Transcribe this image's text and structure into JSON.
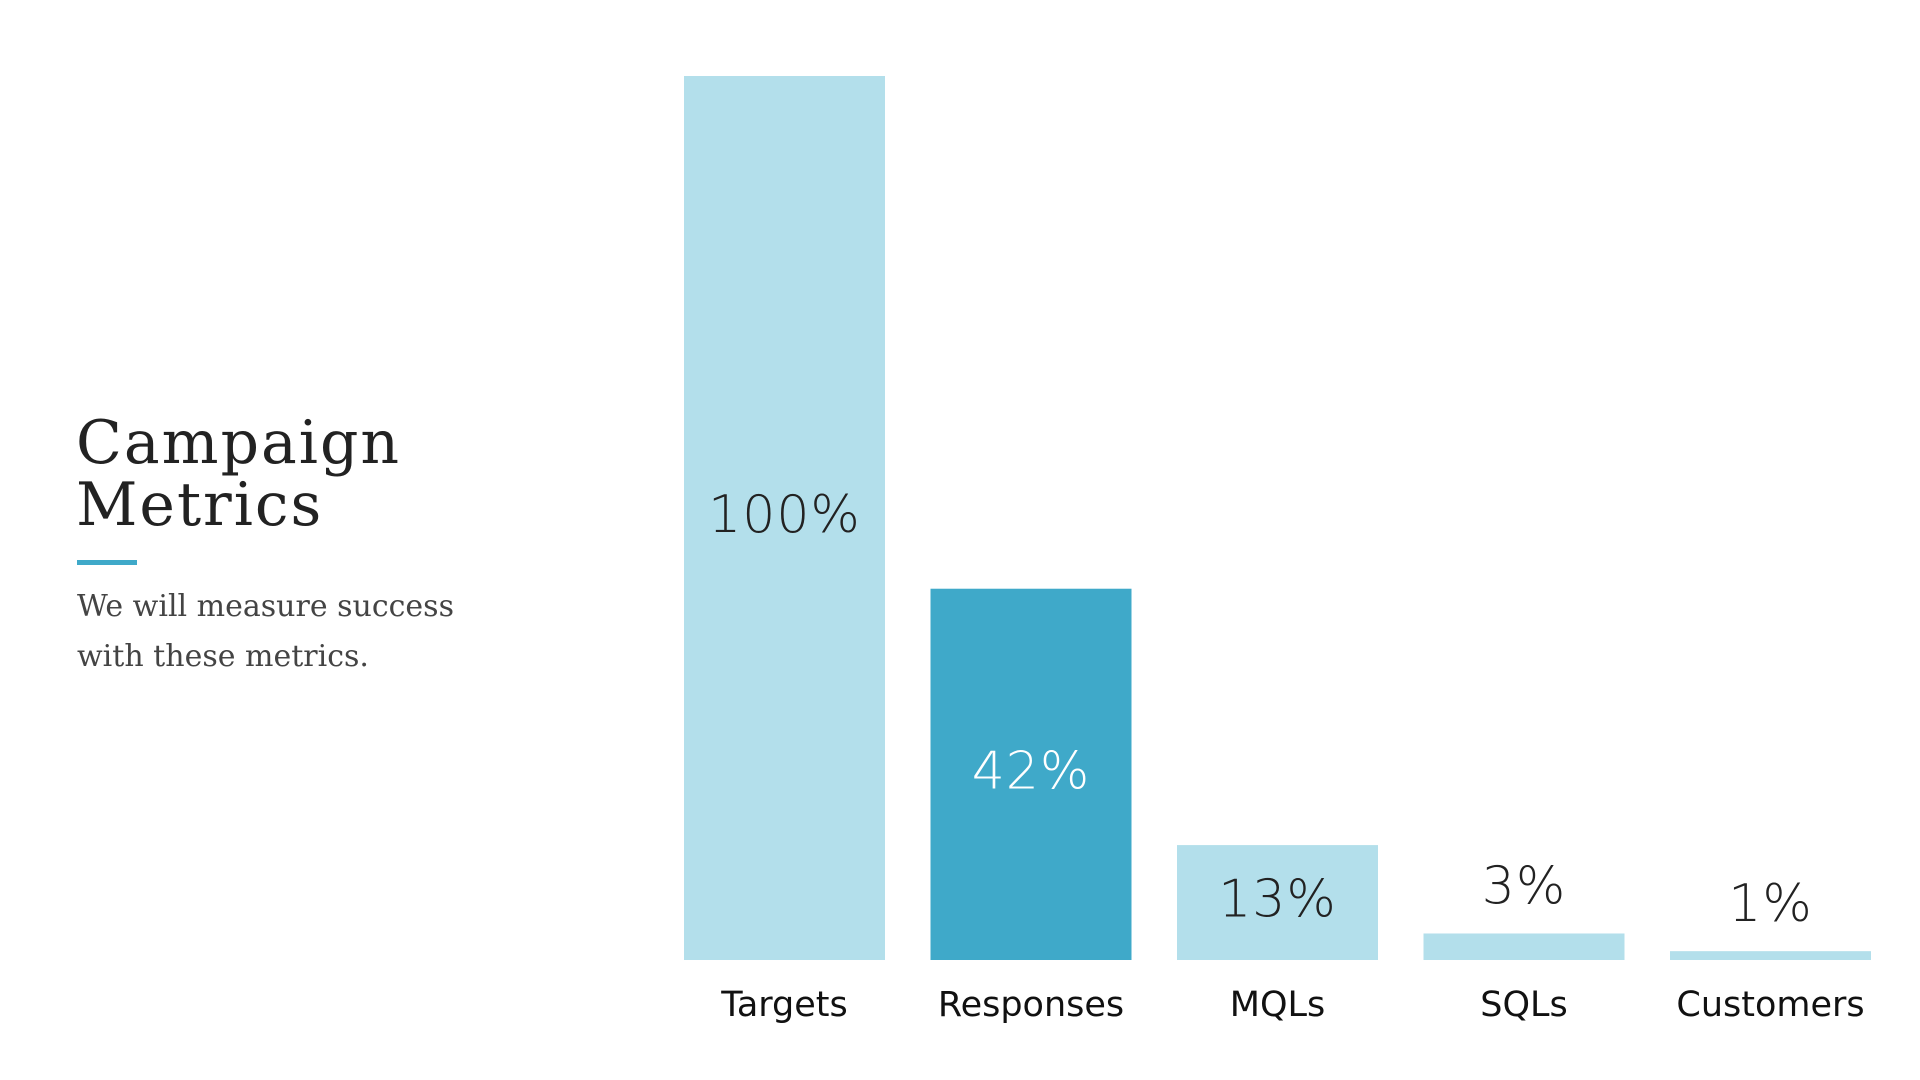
{
  "chart_data": {
    "type": "bar",
    "title": "Campaign Metrics",
    "subtitle": "We will measure success with these metrics.",
    "categories": [
      "Targets",
      "Responses",
      "MQLs",
      "SQLs",
      "Customers"
    ],
    "values": [
      100,
      42,
      13,
      3,
      1
    ],
    "value_labels": [
      "100%",
      "42%",
      "13%",
      "3%",
      "1%"
    ],
    "colors": [
      "#b3dfeb",
      "#3fa9c9",
      "#b3dfeb",
      "#b3dfeb",
      "#b3dfeb"
    ],
    "ylim": [
      0,
      100
    ]
  }
}
